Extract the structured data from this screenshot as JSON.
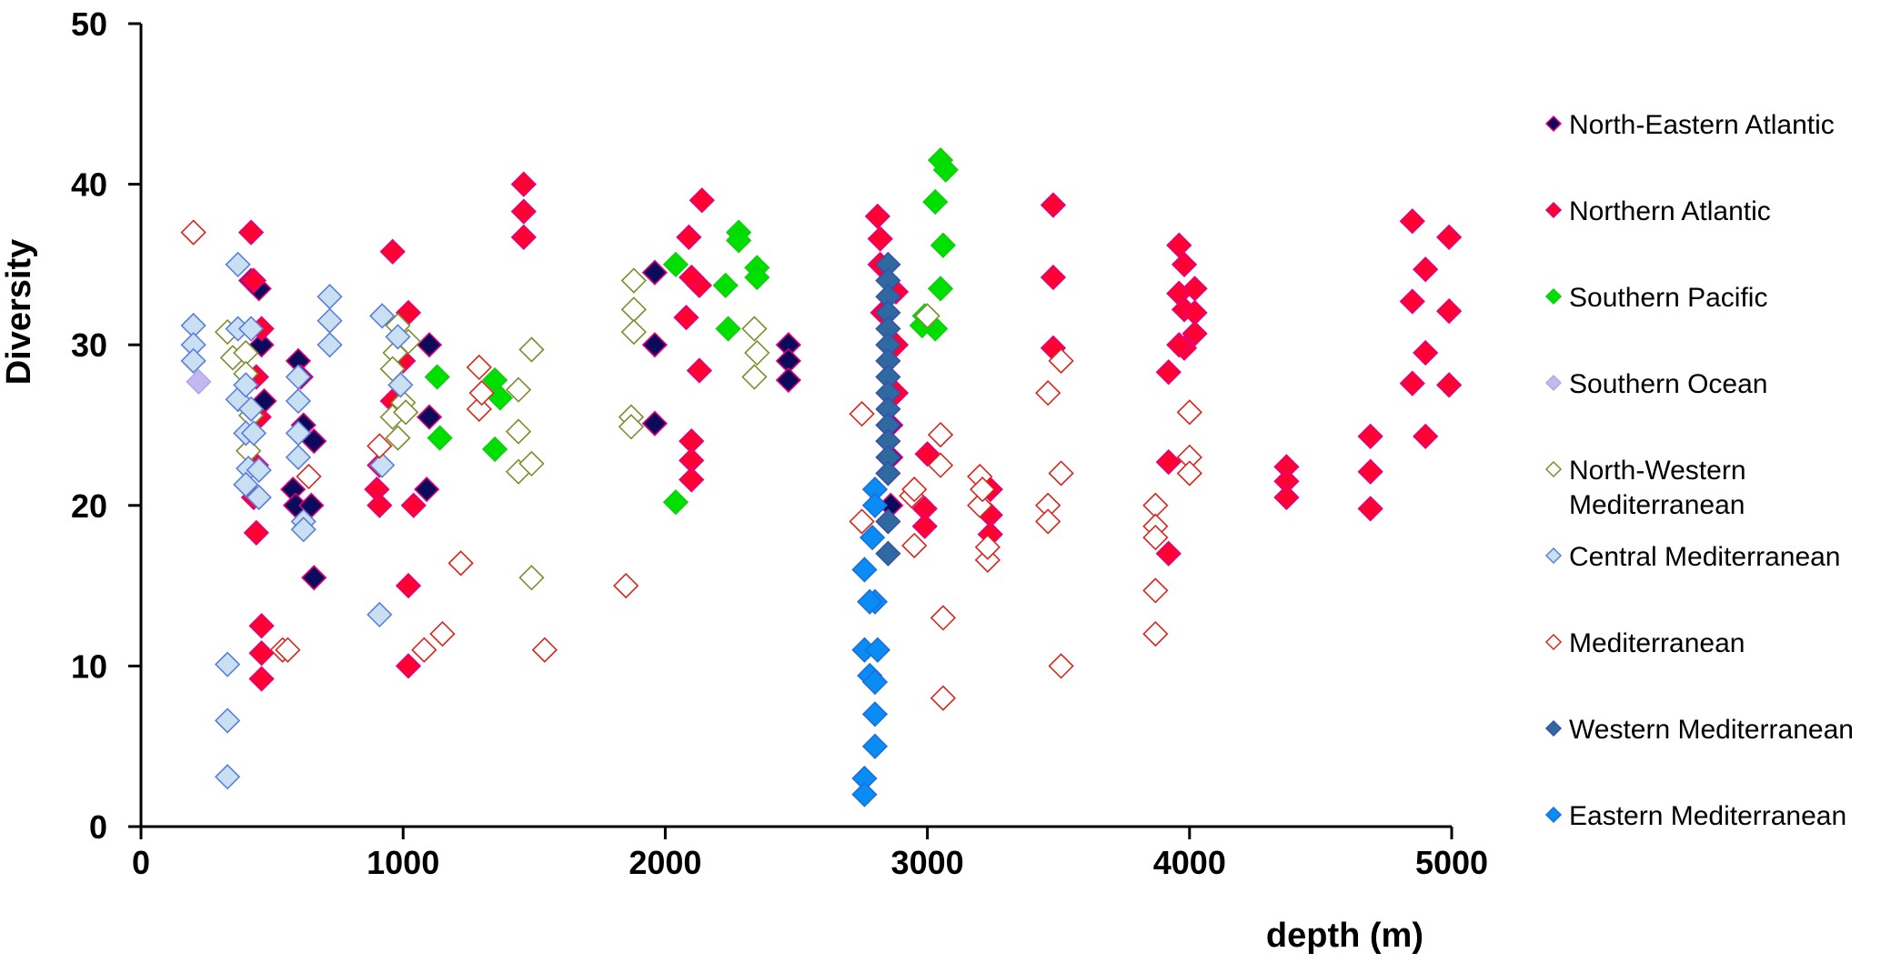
{
  "chart_data": {
    "type": "scatter",
    "title": "",
    "xlabel": "depth (m)",
    "ylabel": "Diversity",
    "xlim": [
      0,
      5000
    ],
    "ylim": [
      0,
      50
    ],
    "xticks": [
      0,
      1000,
      2000,
      3000,
      4000,
      5000
    ],
    "yticks": [
      0,
      10,
      20,
      30,
      40,
      50
    ],
    "grid": false,
    "legend_position": "right",
    "series": [
      {
        "name": "North-Eastern Atlantic",
        "legend_lines": [
          "North-Eastern Atlantic"
        ],
        "fill": "#0d0a5c",
        "stroke": "#e4007c",
        "points": [
          [
            420,
            34
          ],
          [
            450,
            33.5
          ],
          [
            460,
            30
          ],
          [
            470,
            26.5
          ],
          [
            600,
            29
          ],
          [
            610,
            28
          ],
          [
            620,
            25
          ],
          [
            580,
            21
          ],
          [
            590,
            20
          ],
          [
            660,
            24
          ],
          [
            650,
            20
          ],
          [
            660,
            15.5
          ],
          [
            1100,
            30
          ],
          [
            1100,
            25.5
          ],
          [
            1090,
            21
          ],
          [
            1960,
            34.5
          ],
          [
            1960,
            30
          ],
          [
            1960,
            25.1
          ],
          [
            2470,
            30
          ],
          [
            2470,
            29
          ],
          [
            2470,
            27.8
          ],
          [
            2860,
            30
          ],
          [
            2860,
            27
          ],
          [
            2860,
            25
          ],
          [
            2860,
            23
          ],
          [
            2860,
            20
          ]
        ]
      },
      {
        "name": "Northern Atlantic",
        "legend_lines": [
          "Northern Atlantic"
        ],
        "fill": "#ff0033",
        "stroke": "#e4007c",
        "points": [
          [
            420,
            37
          ],
          [
            430,
            34
          ],
          [
            460,
            31
          ],
          [
            440,
            28
          ],
          [
            450,
            25.5
          ],
          [
            440,
            22.5
          ],
          [
            430,
            20.5
          ],
          [
            440,
            18.3
          ],
          [
            460,
            12.5
          ],
          [
            460,
            10.8
          ],
          [
            460,
            9.2
          ],
          [
            960,
            35.8
          ],
          [
            1020,
            32
          ],
          [
            960,
            26.5
          ],
          [
            910,
            22.5
          ],
          [
            900,
            21
          ],
          [
            910,
            20
          ],
          [
            1000,
            29
          ],
          [
            1040,
            20
          ],
          [
            1020,
            15
          ],
          [
            1020,
            10
          ],
          [
            1460,
            40
          ],
          [
            1460,
            38.3
          ],
          [
            1460,
            36.7
          ],
          [
            2090,
            36.7
          ],
          [
            2140,
            39
          ],
          [
            2130,
            33.7
          ],
          [
            2080,
            31.7
          ],
          [
            2130,
            28.4
          ],
          [
            2100,
            34.2
          ],
          [
            2100,
            24
          ],
          [
            2100,
            22.8
          ],
          [
            2100,
            21.6
          ],
          [
            2810,
            38
          ],
          [
            2820,
            36.6
          ],
          [
            2820,
            35
          ],
          [
            2830,
            32
          ],
          [
            2880,
            33.3
          ],
          [
            2880,
            30
          ],
          [
            2880,
            27
          ],
          [
            3000,
            23.2
          ],
          [
            2990,
            19.8
          ],
          [
            2990,
            18.7
          ],
          [
            3240,
            21
          ],
          [
            3240,
            19.4
          ],
          [
            3240,
            18.2
          ],
          [
            3480,
            38.7
          ],
          [
            3480,
            34.2
          ],
          [
            3480,
            29.8
          ],
          [
            3960,
            36.2
          ],
          [
            3980,
            35
          ],
          [
            3960,
            33.2
          ],
          [
            3980,
            32.2
          ],
          [
            4020,
            33.5
          ],
          [
            4020,
            32
          ],
          [
            4020,
            30.7
          ],
          [
            3980,
            29.8
          ],
          [
            3960,
            30
          ],
          [
            3920,
            28.3
          ],
          [
            3920,
            22.7
          ],
          [
            3920,
            17
          ],
          [
            4370,
            22.4
          ],
          [
            4370,
            21.5
          ],
          [
            4370,
            20.5
          ],
          [
            4690,
            24.3
          ],
          [
            4690,
            22.1
          ],
          [
            4690,
            19.8
          ],
          [
            4850,
            37.7
          ],
          [
            4900,
            34.7
          ],
          [
            4990,
            36.7
          ],
          [
            4850,
            32.7
          ],
          [
            4990,
            32.1
          ],
          [
            4900,
            29.5
          ],
          [
            4850,
            27.6
          ],
          [
            4990,
            27.5
          ],
          [
            4900,
            24.3
          ]
        ]
      },
      {
        "name": "Southern Pacific",
        "legend_lines": [
          "Southern Pacific"
        ],
        "fill": "#00e000",
        "stroke": "#11cc11",
        "points": [
          [
            1130,
            28
          ],
          [
            1140,
            24.2
          ],
          [
            1350,
            27.8
          ],
          [
            1370,
            26.7
          ],
          [
            1350,
            23.5
          ],
          [
            2040,
            35
          ],
          [
            2040,
            20.2
          ],
          [
            2280,
            37
          ],
          [
            2280,
            36.5
          ],
          [
            2230,
            33.7
          ],
          [
            2350,
            34.8
          ],
          [
            2350,
            34.2
          ],
          [
            2240,
            31
          ],
          [
            3050,
            41.5
          ],
          [
            3070,
            40.9
          ],
          [
            3030,
            38.9
          ],
          [
            3060,
            36.2
          ],
          [
            3050,
            33.5
          ],
          [
            2990,
            31.8
          ],
          [
            3030,
            31
          ],
          [
            2980,
            31.2
          ]
        ]
      },
      {
        "name": "Southern Ocean",
        "legend_lines": [
          "Southern Ocean"
        ],
        "fill": "#c4b8f0",
        "stroke": "#b4a8e6",
        "points": [
          [
            220,
            27.7
          ]
        ]
      },
      {
        "name": "North-Western Mediterranean",
        "legend_lines": [
          "North-Western",
          "Mediterranean"
        ],
        "fill": "#ffffff",
        "stroke": "#7f8c2e",
        "points": [
          [
            330,
            30.8
          ],
          [
            350,
            29.2
          ],
          [
            400,
            29.5
          ],
          [
            400,
            28.2
          ],
          [
            420,
            25.6
          ],
          [
            410,
            23.4
          ],
          [
            980,
            31.2
          ],
          [
            970,
            29.5
          ],
          [
            1020,
            30.2
          ],
          [
            960,
            28.5
          ],
          [
            1000,
            26.4
          ],
          [
            960,
            25.5
          ],
          [
            980,
            24.2
          ],
          [
            1010,
            25.8
          ],
          [
            1440,
            27.2
          ],
          [
            1440,
            24.6
          ],
          [
            1440,
            22.1
          ],
          [
            1490,
            29.7
          ],
          [
            1490,
            22.6
          ],
          [
            1490,
            15.5
          ],
          [
            1880,
            34
          ],
          [
            1880,
            32.2
          ],
          [
            1880,
            30.8
          ],
          [
            1870,
            25.5
          ],
          [
            1870,
            24.9
          ],
          [
            2340,
            31
          ],
          [
            2350,
            29.5
          ],
          [
            2340,
            28
          ],
          [
            3000,
            31.8
          ]
        ]
      },
      {
        "name": "Central Mediterranean",
        "legend_lines": [
          "Central Mediterranean"
        ],
        "fill": "#c9dff2",
        "stroke": "#5b7fd9",
        "points": [
          [
            200,
            31.2
          ],
          [
            200,
            30
          ],
          [
            200,
            29
          ],
          [
            370,
            35
          ],
          [
            370,
            31
          ],
          [
            420,
            31
          ],
          [
            370,
            26.6
          ],
          [
            400,
            27.5
          ],
          [
            400,
            24.5
          ],
          [
            410,
            22.3
          ],
          [
            400,
            21.3
          ],
          [
            450,
            22.2
          ],
          [
            450,
            20.5
          ],
          [
            430,
            24.5
          ],
          [
            420,
            26
          ],
          [
            600,
            28
          ],
          [
            600,
            26.5
          ],
          [
            600,
            24.5
          ],
          [
            600,
            23
          ],
          [
            620,
            19
          ],
          [
            620,
            18.5
          ],
          [
            720,
            33
          ],
          [
            720,
            31.5
          ],
          [
            720,
            30
          ],
          [
            920,
            31.8
          ],
          [
            920,
            22.5
          ],
          [
            910,
            13.2
          ],
          [
            980,
            30.5
          ],
          [
            990,
            27.5
          ],
          [
            330,
            10.1
          ],
          [
            330,
            6.6
          ],
          [
            330,
            3.1
          ]
        ]
      },
      {
        "name": "Mediterranean",
        "legend_lines": [
          "Mediterranean"
        ],
        "fill": "#ffffff",
        "stroke": "#d9261c",
        "points": [
          [
            200,
            37
          ],
          [
            540,
            11
          ],
          [
            560,
            11
          ],
          [
            640,
            21.8
          ],
          [
            910,
            23.7
          ],
          [
            1080,
            11
          ],
          [
            1150,
            12
          ],
          [
            1220,
            16.4
          ],
          [
            1290,
            28.6
          ],
          [
            1290,
            26
          ],
          [
            1300,
            27
          ],
          [
            1540,
            11
          ],
          [
            1850,
            15
          ],
          [
            2750,
            25.7
          ],
          [
            2750,
            19
          ],
          [
            2940,
            20.6
          ],
          [
            2950,
            21
          ],
          [
            2950,
            17.5
          ],
          [
            3050,
            24.4
          ],
          [
            3050,
            22.5
          ],
          [
            3060,
            13
          ],
          [
            3060,
            8
          ],
          [
            3200,
            21.8
          ],
          [
            3200,
            20
          ],
          [
            3210,
            21
          ],
          [
            3230,
            16.6
          ],
          [
            3230,
            17.4
          ],
          [
            3460,
            27
          ],
          [
            3460,
            20
          ],
          [
            3460,
            19
          ],
          [
            3510,
            29
          ],
          [
            3510,
            22
          ],
          [
            3510,
            10
          ],
          [
            3870,
            20
          ],
          [
            3870,
            18.7
          ],
          [
            3870,
            18
          ],
          [
            3870,
            14.7
          ],
          [
            3870,
            12
          ],
          [
            4000,
            25.8
          ],
          [
            4000,
            23
          ],
          [
            4000,
            22
          ]
        ]
      },
      {
        "name": "Western Mediterranean",
        "legend_lines": [
          "Western Mediterranean"
        ],
        "fill": "#2e6aa0",
        "stroke": "#3b4fa8",
        "points": [
          [
            2850,
            35
          ],
          [
            2850,
            34
          ],
          [
            2850,
            33
          ],
          [
            2850,
            32
          ],
          [
            2850,
            31
          ],
          [
            2850,
            30
          ],
          [
            2850,
            29
          ],
          [
            2850,
            28
          ],
          [
            2850,
            27
          ],
          [
            2850,
            26
          ],
          [
            2850,
            25
          ],
          [
            2850,
            24
          ],
          [
            2850,
            23
          ],
          [
            2850,
            22
          ],
          [
            2850,
            19
          ],
          [
            2850,
            17
          ]
        ]
      },
      {
        "name": "Eastern Mediterranean",
        "legend_lines": [
          "Eastern Mediterranean"
        ],
        "fill": "#0a8cf5",
        "stroke": "#1c6fd9",
        "points": [
          [
            2800,
            21
          ],
          [
            2800,
            20
          ],
          [
            2790,
            18
          ],
          [
            2760,
            16
          ],
          [
            2800,
            14
          ],
          [
            2780,
            14
          ],
          [
            2760,
            11
          ],
          [
            2810,
            11
          ],
          [
            2780,
            9.4
          ],
          [
            2800,
            9
          ],
          [
            2800,
            7
          ],
          [
            2800,
            5
          ],
          [
            2760,
            3
          ],
          [
            2760,
            2
          ]
        ]
      }
    ]
  }
}
